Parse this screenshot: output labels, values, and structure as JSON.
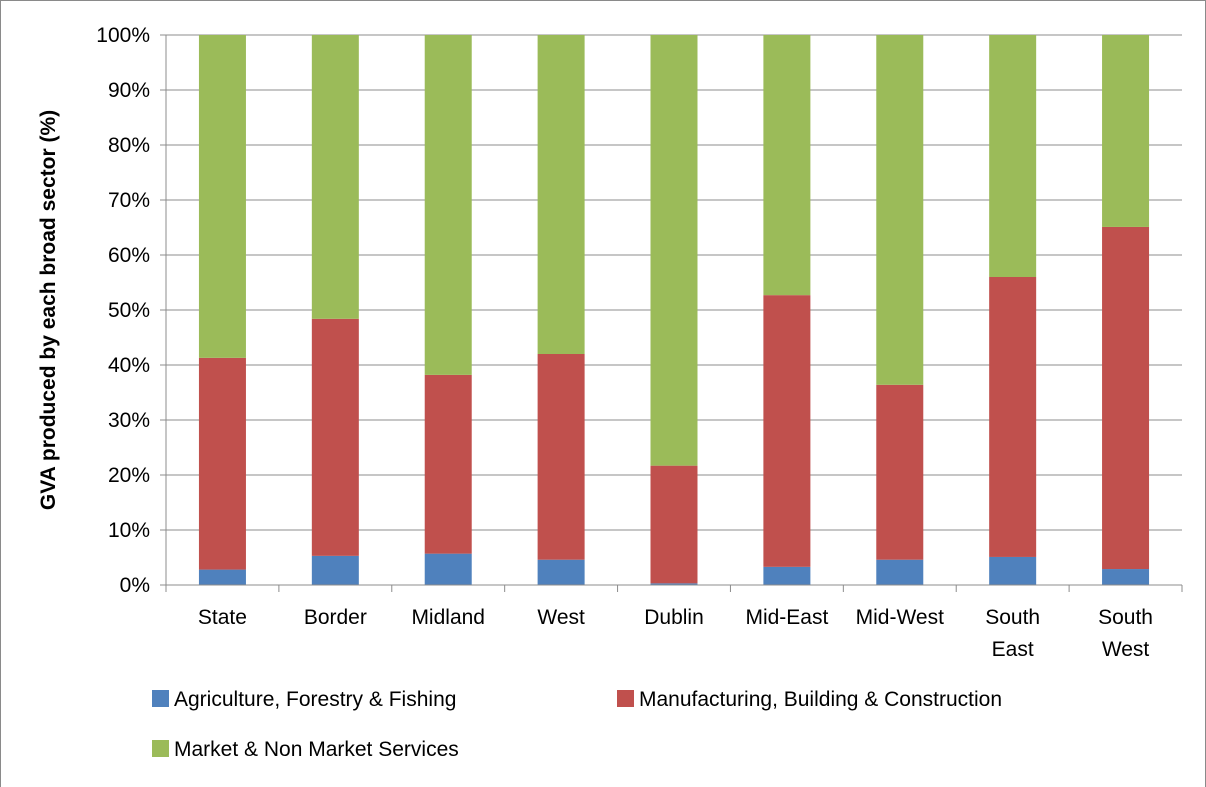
{
  "chart_data": {
    "type": "bar",
    "stacked": true,
    "percent_stacked": true,
    "categories": [
      "State",
      "Border",
      "Midland",
      "West",
      "Dublin",
      "Mid-East",
      "Mid-West",
      "South East",
      "South West"
    ],
    "category_lines": [
      [
        "State"
      ],
      [
        "Border"
      ],
      [
        "Midland"
      ],
      [
        "West"
      ],
      [
        "Dublin"
      ],
      [
        "Mid-East"
      ],
      [
        "Mid-West"
      ],
      [
        "South",
        "East"
      ],
      [
        "South",
        "West"
      ]
    ],
    "series": [
      {
        "name": "Agriculture, Forestry & Fishing",
        "color": "#4f81bd",
        "values": [
          2.8,
          5.3,
          5.7,
          4.6,
          0.3,
          3.3,
          4.6,
          5.1,
          2.9
        ]
      },
      {
        "name": "Manufacturing, Building & Construction",
        "color": "#c0504d",
        "values": [
          38.5,
          43.1,
          32.5,
          37.4,
          21.4,
          49.4,
          31.8,
          50.9,
          62.2
        ]
      },
      {
        "name": "Market & Non Market Services",
        "color": "#9bbb59",
        "values": [
          58.7,
          51.6,
          61.8,
          58.0,
          78.3,
          47.3,
          63.6,
          44.0,
          34.9
        ]
      }
    ],
    "ylabel": "GVA produced by each broad sector (%)",
    "xlabel": "",
    "ylim": [
      0,
      100
    ],
    "yticks": [
      "0%",
      "10%",
      "20%",
      "30%",
      "40%",
      "50%",
      "60%",
      "70%",
      "80%",
      "90%",
      "100%"
    ],
    "grid": true,
    "legend_position": "bottom"
  }
}
